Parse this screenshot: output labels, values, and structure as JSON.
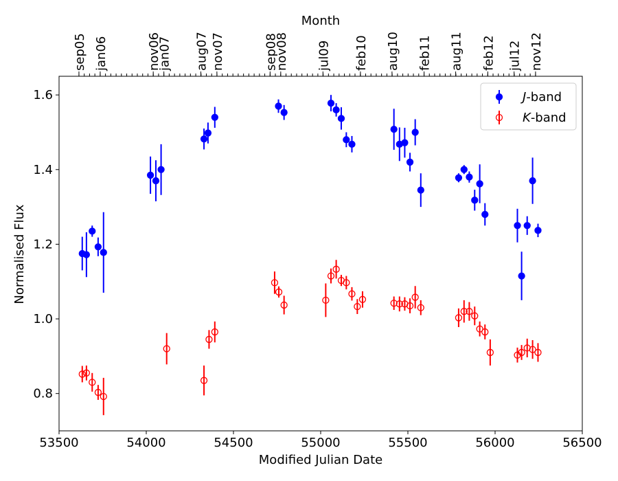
{
  "chart_data": {
    "type": "scatter",
    "title": "",
    "xlabel": "Modified Julian Date",
    "ylabel": "Normalised Flux",
    "top_axis_label": "Month",
    "xlim": [
      53500,
      56500
    ],
    "ylim": [
      0.7,
      1.65
    ],
    "x_ticks": [
      53500,
      54000,
      54500,
      55000,
      55500,
      56000,
      56500
    ],
    "x_tick_labels": [
      "53500",
      "54000",
      "54500",
      "55000",
      "55500",
      "56000",
      "56500"
    ],
    "y_ticks": [
      0.8,
      1.0,
      1.2,
      1.4,
      1.6
    ],
    "y_tick_labels": [
      "0.8",
      "1.0",
      "1.2",
      "1.4",
      "1.6"
    ],
    "grid": false,
    "legend_position": "top-right",
    "month_labels": [
      {
        "label": "sep05",
        "mjd": 53614
      },
      {
        "label": "jan06",
        "mjd": 53736
      },
      {
        "label": "nov06",
        "mjd": 54040
      },
      {
        "label": "jan07",
        "mjd": 54101
      },
      {
        "label": "aug07",
        "mjd": 54313
      },
      {
        "label": "nov07",
        "mjd": 54405
      },
      {
        "label": "sep08",
        "mjd": 54710
      },
      {
        "label": "nov08",
        "mjd": 54771
      },
      {
        "label": "jul09",
        "mjd": 55013
      },
      {
        "label": "feb10",
        "mjd": 55228
      },
      {
        "label": "aug10",
        "mjd": 55409
      },
      {
        "label": "feb11",
        "mjd": 55593
      },
      {
        "label": "aug11",
        "mjd": 55774
      },
      {
        "label": "feb12",
        "mjd": 55958
      },
      {
        "label": "jul12",
        "mjd": 56109
      },
      {
        "label": "nov12",
        "mjd": 56232
      }
    ],
    "month_tick_start": 53614,
    "month_tick_count": 87,
    "month_tick_step": 30.44,
    "series": [
      {
        "name": "J-band",
        "legend_italic": "J",
        "legend_suffix": "-band",
        "color": "#0000ff",
        "marker": "filled",
        "points": [
          {
            "x": 53633,
            "y": 1.175,
            "err": 0.045
          },
          {
            "x": 53657,
            "y": 1.172,
            "err": 0.06
          },
          {
            "x": 53690,
            "y": 1.235,
            "err": 0.015
          },
          {
            "x": 53724,
            "y": 1.193,
            "err": 0.025
          },
          {
            "x": 53755,
            "y": 1.178,
            "err": 0.108
          },
          {
            "x": 54024,
            "y": 1.385,
            "err": 0.05
          },
          {
            "x": 54055,
            "y": 1.37,
            "err": 0.055
          },
          {
            "x": 54085,
            "y": 1.4,
            "err": 0.068
          },
          {
            "x": 54331,
            "y": 1.482,
            "err": 0.028
          },
          {
            "x": 54354,
            "y": 1.498,
            "err": 0.028
          },
          {
            "x": 54393,
            "y": 1.54,
            "err": 0.028
          },
          {
            "x": 54758,
            "y": 1.57,
            "err": 0.018
          },
          {
            "x": 54790,
            "y": 1.553,
            "err": 0.02
          },
          {
            "x": 55059,
            "y": 1.578,
            "err": 0.022
          },
          {
            "x": 55089,
            "y": 1.56,
            "err": 0.018
          },
          {
            "x": 55118,
            "y": 1.537,
            "err": 0.03
          },
          {
            "x": 55147,
            "y": 1.48,
            "err": 0.02
          },
          {
            "x": 55179,
            "y": 1.468,
            "err": 0.022
          },
          {
            "x": 55420,
            "y": 1.508,
            "err": 0.055
          },
          {
            "x": 55452,
            "y": 1.468,
            "err": 0.045
          },
          {
            "x": 55482,
            "y": 1.472,
            "err": 0.04
          },
          {
            "x": 55512,
            "y": 1.42,
            "err": 0.025
          },
          {
            "x": 55542,
            "y": 1.5,
            "err": 0.035
          },
          {
            "x": 55574,
            "y": 1.345,
            "err": 0.045
          },
          {
            "x": 55791,
            "y": 1.378,
            "err": 0.012
          },
          {
            "x": 55822,
            "y": 1.4,
            "err": 0.012
          },
          {
            "x": 55852,
            "y": 1.38,
            "err": 0.015
          },
          {
            "x": 55883,
            "y": 1.318,
            "err": 0.028
          },
          {
            "x": 55912,
            "y": 1.362,
            "err": 0.052
          },
          {
            "x": 55942,
            "y": 1.28,
            "err": 0.03
          },
          {
            "x": 56128,
            "y": 1.25,
            "err": 0.045
          },
          {
            "x": 56152,
            "y": 1.115,
            "err": 0.065
          },
          {
            "x": 56184,
            "y": 1.25,
            "err": 0.025
          },
          {
            "x": 56215,
            "y": 1.37,
            "err": 0.062
          },
          {
            "x": 56246,
            "y": 1.237,
            "err": 0.018
          }
        ]
      },
      {
        "name": "K-band",
        "legend_italic": "K",
        "legend_suffix": "-band",
        "color": "#ff0000",
        "marker": "open",
        "points": [
          {
            "x": 53633,
            "y": 0.852,
            "err": 0.022
          },
          {
            "x": 53657,
            "y": 0.855,
            "err": 0.02
          },
          {
            "x": 53690,
            "y": 0.83,
            "err": 0.025
          },
          {
            "x": 53724,
            "y": 0.803,
            "err": 0.02
          },
          {
            "x": 53755,
            "y": 0.792,
            "err": 0.05
          },
          {
            "x": 54117,
            "y": 0.92,
            "err": 0.042
          },
          {
            "x": 54331,
            "y": 0.835,
            "err": 0.04
          },
          {
            "x": 54360,
            "y": 0.945,
            "err": 0.025
          },
          {
            "x": 54393,
            "y": 0.965,
            "err": 0.028
          },
          {
            "x": 54736,
            "y": 1.097,
            "err": 0.03
          },
          {
            "x": 54760,
            "y": 1.072,
            "err": 0.015
          },
          {
            "x": 54790,
            "y": 1.037,
            "err": 0.025
          },
          {
            "x": 55029,
            "y": 1.05,
            "err": 0.045
          },
          {
            "x": 55059,
            "y": 1.115,
            "err": 0.02
          },
          {
            "x": 55089,
            "y": 1.133,
            "err": 0.025
          },
          {
            "x": 55118,
            "y": 1.103,
            "err": 0.015
          },
          {
            "x": 55147,
            "y": 1.097,
            "err": 0.018
          },
          {
            "x": 55179,
            "y": 1.067,
            "err": 0.018
          },
          {
            "x": 55210,
            "y": 1.033,
            "err": 0.02
          },
          {
            "x": 55240,
            "y": 1.052,
            "err": 0.022
          },
          {
            "x": 55420,
            "y": 1.042,
            "err": 0.018
          },
          {
            "x": 55452,
            "y": 1.04,
            "err": 0.02
          },
          {
            "x": 55482,
            "y": 1.04,
            "err": 0.018
          },
          {
            "x": 55512,
            "y": 1.035,
            "err": 0.02
          },
          {
            "x": 55542,
            "y": 1.058,
            "err": 0.03
          },
          {
            "x": 55574,
            "y": 1.03,
            "err": 0.02
          },
          {
            "x": 55791,
            "y": 1.003,
            "err": 0.025
          },
          {
            "x": 55822,
            "y": 1.02,
            "err": 0.03
          },
          {
            "x": 55852,
            "y": 1.02,
            "err": 0.025
          },
          {
            "x": 55883,
            "y": 1.008,
            "err": 0.025
          },
          {
            "x": 55912,
            "y": 0.973,
            "err": 0.02
          },
          {
            "x": 55942,
            "y": 0.965,
            "err": 0.02
          },
          {
            "x": 55972,
            "y": 0.91,
            "err": 0.035
          },
          {
            "x": 56128,
            "y": 0.903,
            "err": 0.02
          },
          {
            "x": 56152,
            "y": 0.91,
            "err": 0.02
          },
          {
            "x": 56184,
            "y": 0.922,
            "err": 0.025
          },
          {
            "x": 56215,
            "y": 0.918,
            "err": 0.025
          },
          {
            "x": 56246,
            "y": 0.91,
            "err": 0.025
          }
        ]
      }
    ]
  }
}
